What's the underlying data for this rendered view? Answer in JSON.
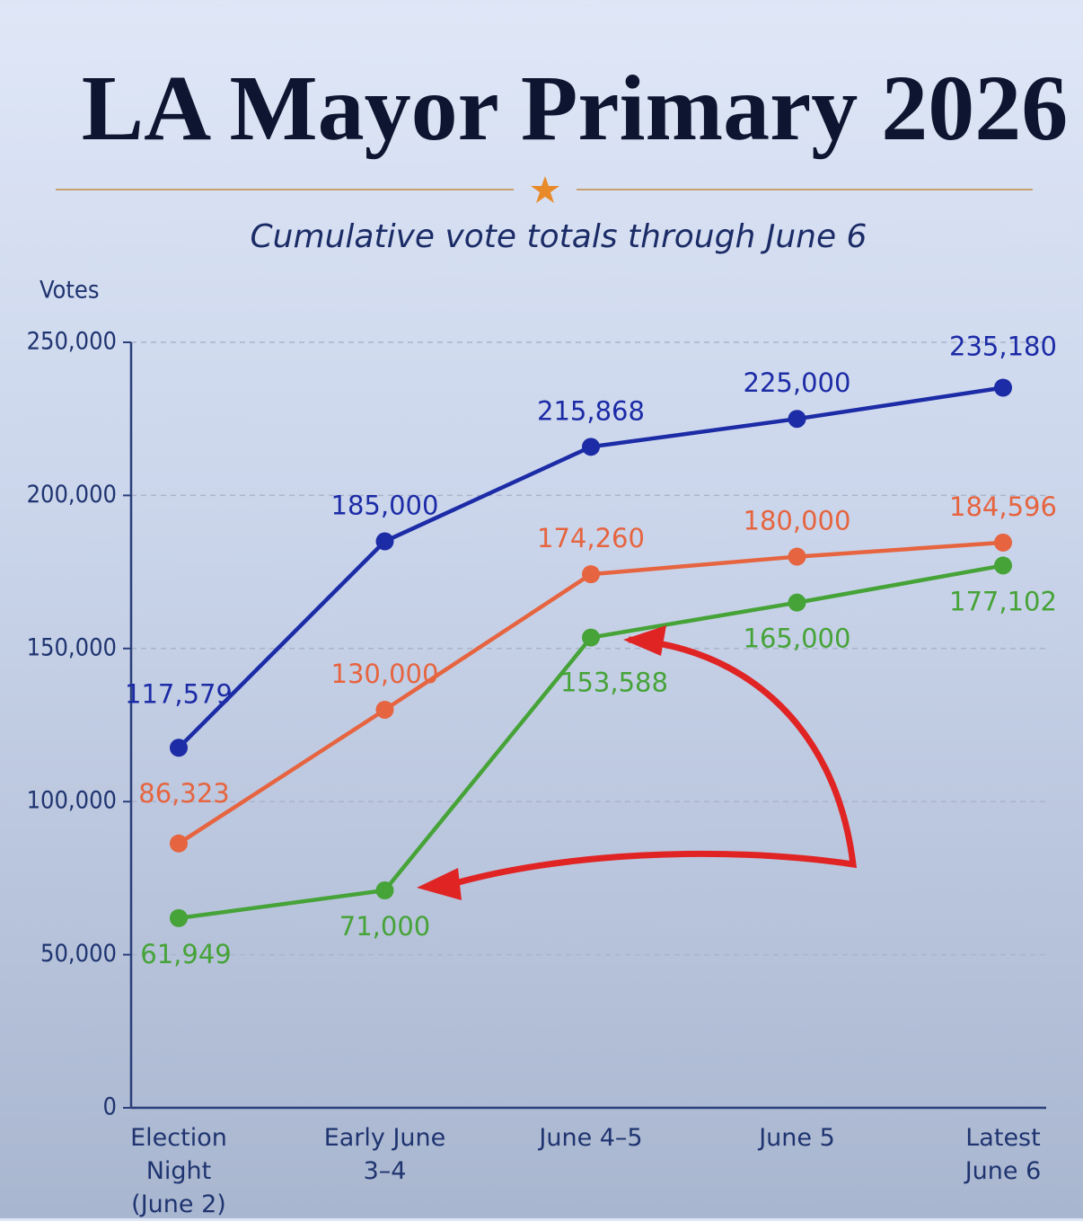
{
  "chart_data": {
    "type": "line",
    "title": "LA Mayor Primary 2026",
    "subtitle": "Cumulative vote totals through June 6",
    "y_label": "Votes",
    "categories": [
      "Election Night (June 2)",
      "Early June 3–4",
      "June 4–5",
      "June 5",
      "Latest June 6"
    ],
    "series": [
      {
        "color": "#1c2ba6",
        "values": [
          117579,
          185000,
          215868,
          225000,
          235180
        ],
        "value_labels": [
          "117,579",
          "185,000",
          "215,868",
          "225,000",
          "235,180"
        ]
      },
      {
        "color": "#e6643f",
        "values": [
          86323,
          130000,
          174260,
          180000,
          184596
        ],
        "value_labels": [
          "86,323",
          "130,000",
          "174,260",
          "180,000",
          "184,596"
        ]
      },
      {
        "color": "#46a338",
        "values": [
          61949,
          71000,
          153588,
          165000,
          177102
        ],
        "value_labels": [
          "61,949",
          "71,000",
          "153,588",
          "165,000",
          "177,102"
        ]
      }
    ],
    "ylim": [
      0,
      250000
    ],
    "yticks": [
      0,
      {
        "value": 50000,
        "label": "50,000"
      },
      {
        "value": 100000,
        "label": "100,000"
      },
      {
        "value": 150000,
        "label": "150,000"
      },
      {
        "value": 200000,
        "label": "200,000"
      },
      {
        "value": 250000,
        "label": "250,000"
      }
    ],
    "grid": true
  }
}
